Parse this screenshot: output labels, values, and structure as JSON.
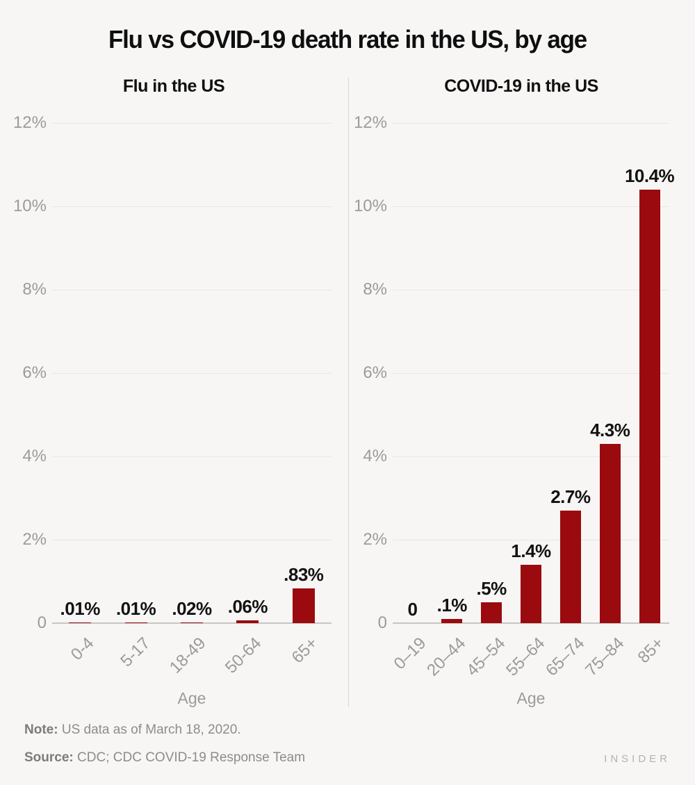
{
  "title": "Flu vs COVID-19 death rate in the US, by age",
  "footer": {
    "note_label": "Note:",
    "note": "US data as of March 18, 2020.",
    "source_label": "Source:",
    "source": "CDC; CDC COVID-19 Response Team",
    "brand": "INSIDER"
  },
  "colors": {
    "bar": "#9b0a0e",
    "background": "#f7f6f5",
    "gridline": "#e8e7e5",
    "baseline": "#c7c6c4",
    "tick_text": "#9b9b9b",
    "value_text": "#121212"
  },
  "chart_data": [
    {
      "type": "bar",
      "title": "Flu in the US",
      "xlabel": "Age",
      "ylabel": "",
      "categories": [
        "0-4",
        "5-17",
        "18-49",
        "50-64",
        "65+"
      ],
      "values": [
        0.01,
        0.01,
        0.02,
        0.06,
        0.83
      ],
      "value_labels": [
        ".01%",
        ".01%",
        ".02%",
        ".06%",
        ".83%"
      ],
      "ylim": [
        0,
        12
      ],
      "yticks": [
        0,
        2,
        4,
        6,
        8,
        10,
        12
      ],
      "ytick_labels": [
        "0",
        "2%",
        "4%",
        "6%",
        "8%",
        "10%",
        "12%"
      ],
      "grid": true,
      "legend": "none"
    },
    {
      "type": "bar",
      "title": "COVID-19 in the US",
      "xlabel": "Age",
      "ylabel": "",
      "categories": [
        "0–19",
        "20–44",
        "45–54",
        "55–64",
        "65–74",
        "75–84",
        "85+"
      ],
      "values": [
        0,
        0.1,
        0.5,
        1.4,
        2.7,
        4.3,
        10.4
      ],
      "value_labels": [
        "0",
        ".1%",
        ".5%",
        "1.4%",
        "2.7%",
        "4.3%",
        "10.4%"
      ],
      "ylim": [
        0,
        12
      ],
      "yticks": [
        0,
        2,
        4,
        6,
        8,
        10,
        12
      ],
      "ytick_labels": [
        "0",
        "2%",
        "4%",
        "6%",
        "8%",
        "10%",
        "12%"
      ],
      "grid": true,
      "legend": "none"
    }
  ]
}
